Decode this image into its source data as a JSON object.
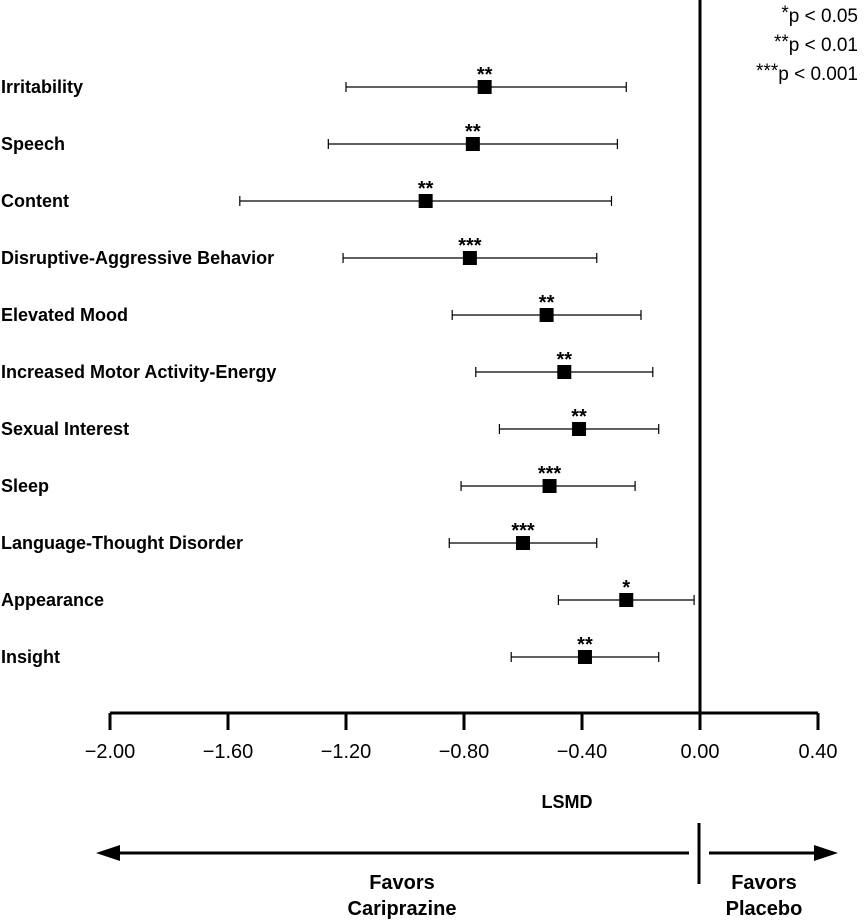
{
  "chart_data": {
    "type": "scatter",
    "subtype": "forest-plot",
    "xlabel": "LSMD",
    "xlim": [
      -2.0,
      0.4
    ],
    "xticks": [
      "−2.00",
      "−1.60",
      "−1.20",
      "−0.80",
      "−0.40",
      "0.00",
      "0.40"
    ],
    "xtick_values": [
      -2.0,
      -1.6,
      -1.2,
      -0.8,
      -0.4,
      0.0,
      0.4
    ],
    "reference_line": 0.0,
    "rows": [
      {
        "label": "Irritability",
        "estimate": -0.73,
        "lower": -1.2,
        "upper": -0.25,
        "sig": "**"
      },
      {
        "label": "Speech",
        "estimate": -0.77,
        "lower": -1.26,
        "upper": -0.28,
        "sig": "**"
      },
      {
        "label": "Content",
        "estimate": -0.93,
        "lower": -1.56,
        "upper": -0.3,
        "sig": "**"
      },
      {
        "label": "Disruptive-Aggressive Behavior",
        "estimate": -0.78,
        "lower": -1.21,
        "upper": -0.35,
        "sig": "***"
      },
      {
        "label": "Elevated Mood",
        "estimate": -0.52,
        "lower": -0.84,
        "upper": -0.2,
        "sig": "**"
      },
      {
        "label": "Increased Motor Activity-Energy",
        "estimate": -0.46,
        "lower": -0.76,
        "upper": -0.16,
        "sig": "**"
      },
      {
        "label": "Sexual Interest",
        "estimate": -0.41,
        "lower": -0.68,
        "upper": -0.14,
        "sig": "**"
      },
      {
        "label": "Sleep",
        "estimate": -0.51,
        "lower": -0.81,
        "upper": -0.22,
        "sig": "***"
      },
      {
        "label": "Language-Thought Disorder",
        "estimate": -0.6,
        "lower": -0.85,
        "upper": -0.35,
        "sig": "***"
      },
      {
        "label": "Appearance",
        "estimate": -0.25,
        "lower": -0.48,
        "upper": -0.02,
        "sig": "*"
      },
      {
        "label": "Insight",
        "estimate": -0.39,
        "lower": -0.64,
        "upper": -0.14,
        "sig": "**"
      }
    ],
    "legend": [
      {
        "stars": "*",
        "text": "p < 0.05"
      },
      {
        "stars": "**",
        "text": "p < 0.01"
      },
      {
        "stars": "***",
        "text": "p < 0.001"
      }
    ],
    "legend_position": "top-right",
    "favors_left": [
      "Favors",
      "Cariprazine"
    ],
    "favors_right": [
      "Favors",
      "Placebo"
    ],
    "grid": false
  }
}
